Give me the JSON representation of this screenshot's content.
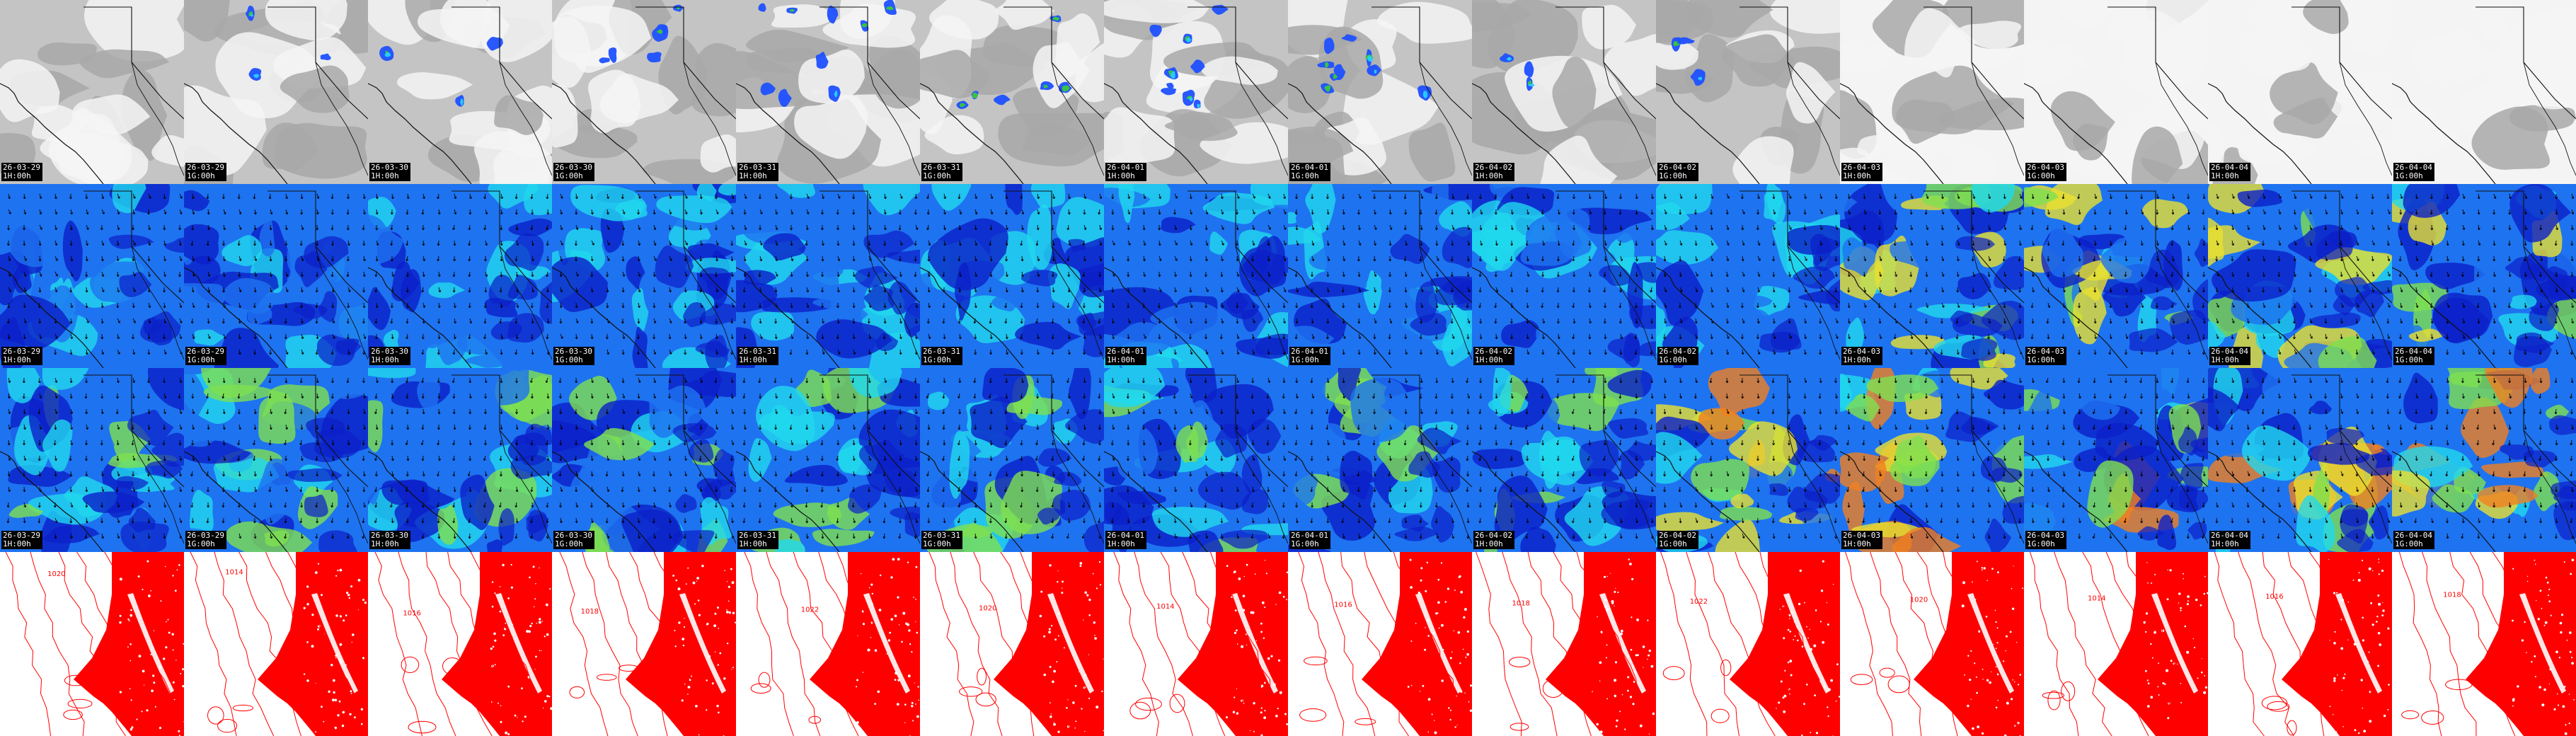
{
  "columns": [
    {
      "date": "26-03-29",
      "hour": "1H:00h"
    },
    {
      "date": "26-03-29",
      "hour": "1G:00h"
    },
    {
      "date": "26-03-30",
      "hour": "1H:00h"
    },
    {
      "date": "26-03-30",
      "hour": "1G:00h"
    },
    {
      "date": "26-03-31",
      "hour": "1H:00h"
    },
    {
      "date": "26-03-31",
      "hour": "1G:00h"
    },
    {
      "date": "26-04-01",
      "hour": "1H:00h"
    },
    {
      "date": "26-04-01",
      "hour": "1G:00h"
    },
    {
      "date": "26-04-02",
      "hour": "1H:00h"
    },
    {
      "date": "26-04-02",
      "hour": "1G:00h"
    },
    {
      "date": "26-04-03",
      "hour": "1H:00h"
    },
    {
      "date": "26-04-03",
      "hour": "1G:00h"
    },
    {
      "date": "26-04-04",
      "hour": "1H:00h"
    },
    {
      "date": "26-04-04",
      "hour": "1G:00h"
    }
  ],
  "rows": [
    {
      "id": "clouds-precip",
      "stamp": true
    },
    {
      "id": "wind-low",
      "stamp": true
    },
    {
      "id": "wind-high",
      "stamp": true
    },
    {
      "id": "pressure",
      "stamp": false
    }
  ],
  "isobar_labels": [
    "1020",
    "1014",
    "1016",
    "1018",
    "1022"
  ],
  "colors": {
    "cloud_light": "#f4f4f4",
    "cloud_gray": "#a8a8a8",
    "precip_blue": "#1e50ff",
    "precip_cyan": "#26d0ff",
    "precip_green": "#3ac83a",
    "wind_navy": "#0b1fc8",
    "wind_blue": "#1e73f0",
    "wind_cyan": "#20d8ee",
    "wind_green": "#7ee050",
    "wind_yellow": "#e8e030",
    "wind_orange": "#f08020",
    "wind_red": "#e02020",
    "pressure_red": "#ff0000",
    "outline": "#111111"
  }
}
